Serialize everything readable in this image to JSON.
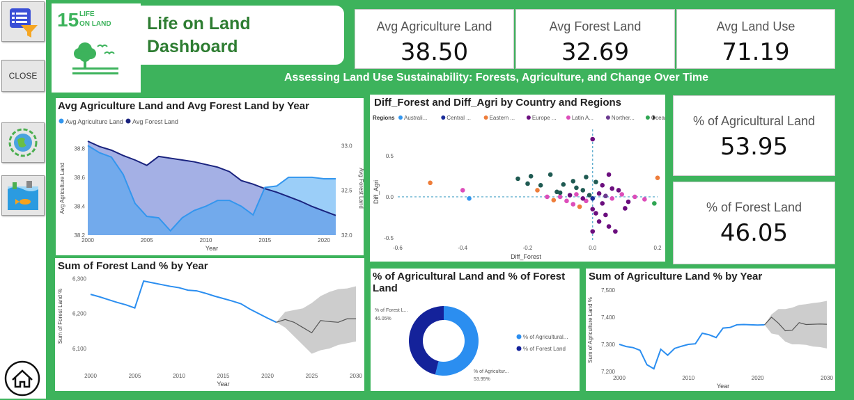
{
  "sidebar": {
    "close_label": "CLOSE"
  },
  "header": {
    "badge_number": "15",
    "badge_text_line1": "LIFE",
    "badge_text_line2": "ON LAND",
    "title_line1": "Life on Land",
    "title_line2": "Dashboard",
    "subtitle": "Assessing Land Use Sustainability: Forests, Agriculture, and Change Over Time",
    "accent": "#3db35c"
  },
  "kpis": [
    {
      "label": "Avg Agriculture Land",
      "value": "38.50"
    },
    {
      "label": "Avg Forest Land",
      "value": "32.69"
    },
    {
      "label": "Avg Land Use",
      "value": "71.19"
    },
    {
      "label": "% of Agricultural Land",
      "value": "53.95"
    },
    {
      "label": "% of Forest Land",
      "value": "46.05"
    }
  ],
  "chart_data": [
    {
      "type": "area",
      "title": "Avg Agriculture Land and Avg Forest Land by Year",
      "xlabel": "Year",
      "ylabel": "Avg Agriculture Land",
      "y2label": "Avg Forest Land",
      "legend": [
        "Avg Agriculture Land",
        "Avg Forest Land"
      ],
      "x_ticks": [
        "2000",
        "2005",
        "2010",
        "2015",
        "2020"
      ],
      "y_ticks": [
        "38.8",
        "38.6",
        "38.4",
        "38.2"
      ],
      "y2_ticks": [
        "33.0",
        "32.5",
        "32.0"
      ],
      "x": [
        2000,
        2001,
        2002,
        2003,
        2004,
        2005,
        2006,
        2007,
        2008,
        2009,
        2010,
        2011,
        2012,
        2013,
        2014,
        2015,
        2016,
        2017,
        2018,
        2019,
        2020,
        2021
      ],
      "series": [
        {
          "name": "Avg Agriculture Land",
          "axis": "left",
          "ylim": [
            38.2,
            38.85
          ],
          "color": "#3396ee",
          "values": [
            38.82,
            38.77,
            38.74,
            38.62,
            38.42,
            38.33,
            38.32,
            38.23,
            38.32,
            38.37,
            38.4,
            38.44,
            38.44,
            38.4,
            38.34,
            38.53,
            38.54,
            38.6,
            38.6,
            38.6,
            38.59,
            38.59
          ]
        },
        {
          "name": "Avg Forest Land",
          "axis": "right",
          "ylim": [
            32.0,
            33.05
          ],
          "color": "#1a237e",
          "values": [
            33.05,
            32.99,
            32.95,
            32.89,
            32.84,
            32.78,
            32.88,
            32.86,
            32.84,
            32.82,
            32.79,
            32.76,
            32.71,
            32.61,
            32.57,
            32.52,
            32.48,
            32.43,
            32.38,
            32.32,
            32.27,
            32.22
          ]
        }
      ]
    },
    {
      "type": "scatter",
      "title": "Diff_Forest and Diff_Agri by Country and Regions",
      "xlabel": "Diff_Forest",
      "ylabel": "Diff_Agri",
      "legend_title": "Regions",
      "legend": [
        {
          "name": "Australi...",
          "color": "#3396ee"
        },
        {
          "name": "Central ...",
          "color": "#1a2d99"
        },
        {
          "name": "Eastern ...",
          "color": "#ee7d3a"
        },
        {
          "name": "Europe ...",
          "color": "#6b0e7e"
        },
        {
          "name": "Latin A...",
          "color": "#dd4dba"
        },
        {
          "name": "Norther...",
          "color": "#6b3a8f"
        },
        {
          "name": "Oceania",
          "color": "#2fa653"
        }
      ],
      "x_ticks": [
        "-0.6",
        "-0.4",
        "-0.2",
        "0.0",
        "0.2"
      ],
      "y_ticks": [
        "0.5",
        "0.0",
        "-0.5"
      ],
      "xlim": [
        -0.6,
        0.2
      ],
      "ylim": [
        -0.55,
        0.65
      ],
      "points": [
        [
          0.0,
          0.7,
          "#6b0e7e"
        ],
        [
          -0.5,
          0.17,
          "#ee7d3a"
        ],
        [
          -0.4,
          0.08,
          "#dd4dba"
        ],
        [
          -0.38,
          -0.02,
          "#3396ee"
        ],
        [
          -0.23,
          0.22,
          "#1f5a52"
        ],
        [
          -0.19,
          0.25,
          "#1f5a52"
        ],
        [
          -0.13,
          0.27,
          "#1f5a52"
        ],
        [
          -0.2,
          0.16,
          "#1f5a52"
        ],
        [
          -0.17,
          0.08,
          "#ee7d3a"
        ],
        [
          -0.16,
          0.14,
          "#1f5a52"
        ],
        [
          -0.11,
          0.06,
          "#1f5a52"
        ],
        [
          -0.09,
          0.15,
          "#1f5a52"
        ],
        [
          -0.06,
          0.19,
          "#1f5a52"
        ],
        [
          -0.05,
          0.11,
          "#1f5a52"
        ],
        [
          -0.03,
          0.08,
          "#1f5a52"
        ],
        [
          -0.02,
          0.24,
          "#1f5a52"
        ],
        [
          0.01,
          0.18,
          "#1f5a52"
        ],
        [
          0.03,
          0.14,
          "#6b0e7e"
        ],
        [
          0.05,
          0.27,
          "#6b0e7e"
        ],
        [
          0.06,
          0.1,
          "#6b0e7e"
        ],
        [
          -0.08,
          -0.05,
          "#dd4dba"
        ],
        [
          -0.1,
          0.0,
          "#dd4dba"
        ],
        [
          -0.06,
          -0.09,
          "#dd4dba"
        ],
        [
          -0.04,
          -0.12,
          "#ee7d3a"
        ],
        [
          -0.02,
          -0.05,
          "#dd4dba"
        ],
        [
          0.0,
          -0.15,
          "#6b0e7e"
        ],
        [
          0.01,
          -0.2,
          "#6b0e7e"
        ],
        [
          0.02,
          -0.3,
          "#6b0e7e"
        ],
        [
          0.04,
          -0.22,
          "#6b0e7e"
        ],
        [
          0.05,
          -0.36,
          "#6b0e7e"
        ],
        [
          0.07,
          -0.42,
          "#6b0e7e"
        ],
        [
          0.0,
          -0.42,
          "#6b0e7e"
        ],
        [
          0.03,
          -0.08,
          "#6b0e7e"
        ],
        [
          0.06,
          -0.02,
          "#dd4dba"
        ],
        [
          0.09,
          0.03,
          "#dd4dba"
        ],
        [
          0.11,
          -0.06,
          "#6b0e7e"
        ],
        [
          0.13,
          0.0,
          "#dd4dba"
        ],
        [
          0.16,
          -0.03,
          "#dd4dba"
        ],
        [
          0.19,
          -0.08,
          "#2fa653"
        ],
        [
          0.2,
          0.23,
          "#ee7d3a"
        ],
        [
          -0.1,
          0.05,
          "#1f5a52"
        ],
        [
          -0.14,
          0.0,
          "#dd4dba"
        ],
        [
          -0.12,
          -0.04,
          "#ee7d3a"
        ],
        [
          -0.07,
          0.02,
          "#6b0e7e"
        ],
        [
          -0.01,
          0.02,
          "#1f5a52"
        ],
        [
          0.02,
          0.04,
          "#6b0e7e"
        ],
        [
          0.08,
          0.08,
          "#6b0e7e"
        ],
        [
          0.1,
          -0.14,
          "#6b0e7e"
        ],
        [
          -0.03,
          -0.02,
          "#6b0e7e"
        ],
        [
          0.0,
          -0.02,
          "#1a2d99"
        ],
        [
          -0.05,
          0.03,
          "#dd4dba"
        ],
        [
          0.04,
          0.01,
          "#6b3a8f"
        ]
      ]
    },
    {
      "type": "line",
      "title": "Sum of Forest Land % by Year",
      "xlabel": "Year",
      "ylabel": "Sum of Forest Land %",
      "x_ticks": [
        "2000",
        "2005",
        "2010",
        "2015",
        "2020",
        "2025",
        "2030"
      ],
      "y_ticks": [
        "6,300",
        "6,200",
        "6,100"
      ],
      "ylim": [
        6080,
        6305
      ],
      "x": [
        2000,
        2001,
        2002,
        2003,
        2004,
        2005,
        2006,
        2007,
        2008,
        2009,
        2010,
        2011,
        2012,
        2013,
        2014,
        2015,
        2016,
        2017,
        2018,
        2019,
        2020,
        2021
      ],
      "values": [
        6255,
        6248,
        6240,
        6232,
        6225,
        6216,
        6293,
        6288,
        6283,
        6278,
        6274,
        6267,
        6265,
        6258,
        6250,
        6243,
        6236,
        6228,
        6213,
        6200,
        6187,
        6175
      ],
      "forecast_x": [
        2021,
        2022,
        2023,
        2024,
        2025,
        2026,
        2027,
        2028,
        2029,
        2030
      ],
      "forecast": [
        6175,
        6183,
        6175,
        6160,
        6145,
        6180,
        6177,
        6175,
        6185,
        6185
      ],
      "forecast_upper": [
        6175,
        6205,
        6210,
        6215,
        6230,
        6250,
        6262,
        6270,
        6272,
        6278
      ],
      "forecast_lower": [
        6175,
        6160,
        6135,
        6110,
        6085,
        6095,
        6100,
        6110,
        6115,
        6120
      ]
    },
    {
      "type": "pie",
      "title": "% of Agricultural Land and % of Forest Land",
      "slices": [
        {
          "name": "% of Agricultural...",
          "label": "% of Agricultur...",
          "value": 53.95,
          "value_label": "53.95%",
          "color": "#2b8ef0"
        },
        {
          "name": "% of Forest Land",
          "label": "% of Forest L...",
          "value": 46.05,
          "value_label": "46.05%",
          "color": "#14229a"
        }
      ]
    },
    {
      "type": "line",
      "title": "Sum of Agriculture Land % by Year",
      "xlabel": "Year",
      "ylabel": "Sum of Agriculture Land %",
      "x_ticks": [
        "2000",
        "2010",
        "2020",
        "2030"
      ],
      "y_ticks": [
        "7,500",
        "7,400",
        "7,300",
        "7,200"
      ],
      "ylim": [
        7195,
        7510
      ],
      "x": [
        2000,
        2001,
        2002,
        2003,
        2004,
        2005,
        2006,
        2007,
        2008,
        2009,
        2010,
        2011,
        2012,
        2013,
        2014,
        2015,
        2016,
        2017,
        2018,
        2019,
        2020,
        2021
      ],
      "values": [
        7300,
        7292,
        7288,
        7278,
        7225,
        7210,
        7282,
        7260,
        7285,
        7293,
        7300,
        7302,
        7341,
        7335,
        7325,
        7360,
        7362,
        7372,
        7373,
        7372,
        7371,
        7372
      ],
      "forecast_x": [
        2021,
        2022,
        2023,
        2024,
        2025,
        2026,
        2027,
        2028,
        2029,
        2030
      ],
      "forecast": [
        7372,
        7400,
        7378,
        7350,
        7352,
        7380,
        7373,
        7374,
        7375,
        7374
      ],
      "forecast_upper": [
        7372,
        7410,
        7430,
        7430,
        7435,
        7445,
        7448,
        7452,
        7455,
        7460
      ],
      "forecast_lower": [
        7372,
        7340,
        7335,
        7310,
        7300,
        7300,
        7298,
        7292,
        7290,
        7285
      ]
    }
  ]
}
